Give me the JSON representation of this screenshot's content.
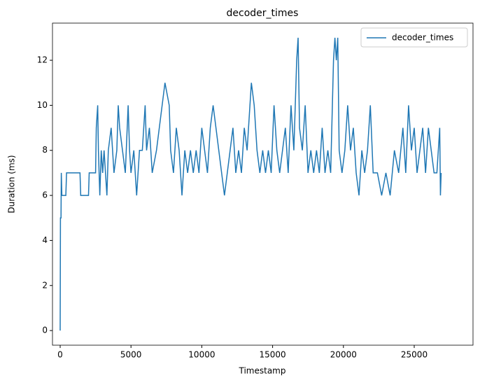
{
  "chart_data": {
    "type": "line",
    "title": "decoder_times",
    "xlabel": "Timestamp",
    "ylabel": "Duration (ms)",
    "x": [
      0,
      20,
      60,
      80,
      120,
      400,
      450,
      1400,
      1450,
      2000,
      2050,
      2500,
      2550,
      2650,
      2700,
      2800,
      2900,
      3000,
      3100,
      3300,
      3400,
      3600,
      3800,
      4000,
      4100,
      4200,
      4400,
      4600,
      4800,
      4900,
      5000,
      5200,
      5400,
      5600,
      5800,
      6000,
      6100,
      6300,
      6500,
      6800,
      7000,
      7200,
      7400,
      7700,
      7800,
      8000,
      8200,
      8400,
      8600,
      8800,
      9000,
      9200,
      9400,
      9600,
      9800,
      10000,
      10200,
      10400,
      10600,
      10800,
      11000,
      11200,
      11400,
      11600,
      11800,
      12000,
      12200,
      12400,
      12600,
      12800,
      13000,
      13200,
      13500,
      13700,
      13900,
      14100,
      14300,
      14500,
      14700,
      14900,
      15100,
      15300,
      15500,
      15700,
      15900,
      16100,
      16300,
      16500,
      16700,
      16800,
      16900,
      17100,
      17300,
      17500,
      17700,
      17900,
      18100,
      18300,
      18500,
      18700,
      18900,
      19100,
      19300,
      19400,
      19500,
      19600,
      19700,
      19900,
      20100,
      20300,
      20500,
      20700,
      20900,
      21100,
      21300,
      21500,
      21700,
      21900,
      22100,
      22400,
      22700,
      23000,
      23300,
      23600,
      23900,
      24200,
      24400,
      24600,
      24800,
      25000,
      25200,
      25400,
      25600,
      25800,
      26000,
      26200,
      26400,
      26600,
      26800,
      26850,
      26900
    ],
    "series": [
      {
        "name": "decoder_times",
        "color": "#1f77b4",
        "values": [
          0,
          5,
          5,
          7,
          6,
          6,
          7,
          7,
          6,
          6,
          7,
          7,
          9,
          10,
          8,
          6,
          8,
          7,
          8,
          6,
          8,
          9,
          7,
          8,
          10,
          9,
          8,
          7,
          10,
          8,
          7,
          8,
          6,
          8,
          8,
          10,
          8,
          9,
          7,
          8,
          9,
          10,
          11,
          10,
          8,
          7,
          9,
          8,
          6,
          8,
          7,
          8,
          7,
          8,
          7,
          9,
          8,
          7,
          9,
          10,
          9,
          8,
          7,
          6,
          7,
          8,
          9,
          7,
          8,
          7,
          9,
          8,
          11,
          10,
          8,
          7,
          8,
          7,
          8,
          7,
          10,
          8,
          7,
          8,
          9,
          7,
          10,
          8,
          12,
          13,
          9,
          8,
          10,
          7,
          8,
          7,
          8,
          7,
          9,
          7,
          8,
          7,
          12,
          13,
          12,
          13,
          8,
          7,
          8,
          10,
          8,
          9,
          7,
          6,
          8,
          7,
          8,
          10,
          7,
          7,
          6,
          7,
          6,
          8,
          7,
          9,
          7,
          10,
          8,
          9,
          7,
          8,
          9,
          7,
          9,
          8,
          7,
          7,
          9,
          6,
          7
        ]
      }
    ],
    "xlim": [
      -543,
      29150
    ],
    "ylim": [
      -0.65,
      13.65
    ],
    "xticks": [
      0,
      5000,
      10000,
      15000,
      20000,
      25000
    ],
    "yticks": [
      0,
      2,
      4,
      6,
      8,
      10,
      12
    ],
    "grid": false,
    "legend": "upper right"
  }
}
